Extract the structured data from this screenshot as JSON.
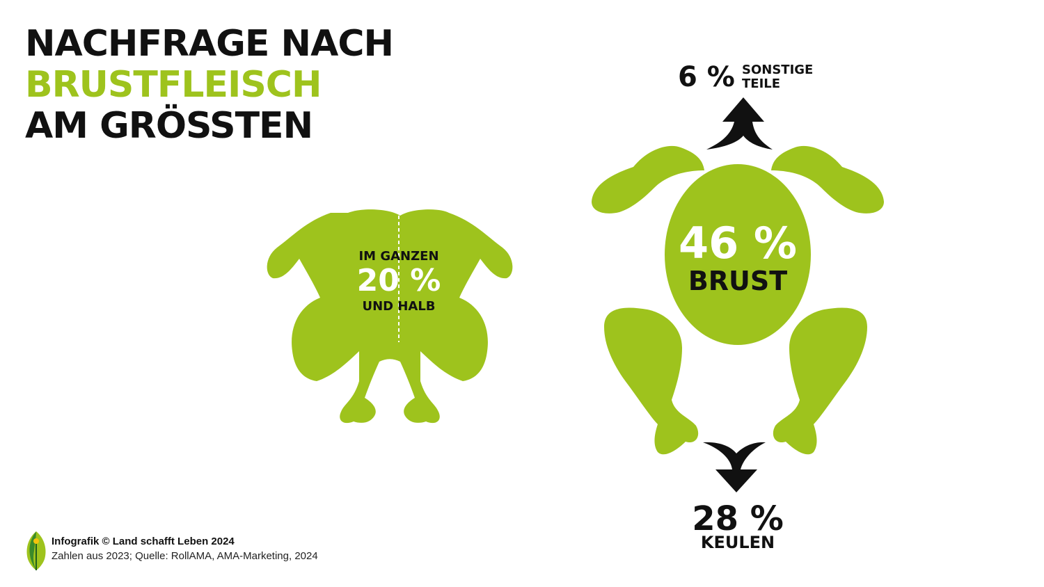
{
  "title": {
    "line1": "NACHFRAGE NACH",
    "line2": "BRUSTFLEISCH",
    "line3": "AM GRÖSSTEN"
  },
  "colors": {
    "accent": "#9ec31d",
    "text": "#111111",
    "background": "#ffffff"
  },
  "whole_chicken": {
    "top": "IM GANZEN",
    "value": "20 %",
    "bottom": "UND HALB"
  },
  "parts": {
    "other": {
      "value": "6 %",
      "label_line1": "SONSTIGE",
      "label_line2": "TEILE"
    },
    "breast": {
      "value": "46 %",
      "label": "BRUST"
    },
    "legs": {
      "value": "28 %",
      "label": "KEULEN"
    }
  },
  "chart_data": {
    "type": "pie",
    "title": "",
    "categories": [
      "IM GANZEN UND HALB",
      "BRUST",
      "KEULEN",
      "SONSTIGE TEILE"
    ],
    "values": [
      20,
      46,
      28,
      6
    ],
    "unit": "%"
  },
  "footer": {
    "line1": "Infografik © Land schafft Leben 2024",
    "line2": "Zahlen aus 2023; Quelle: RollAMA, AMA-Marketing, 2024",
    "logo_icon": "leaf-logo-icon"
  }
}
